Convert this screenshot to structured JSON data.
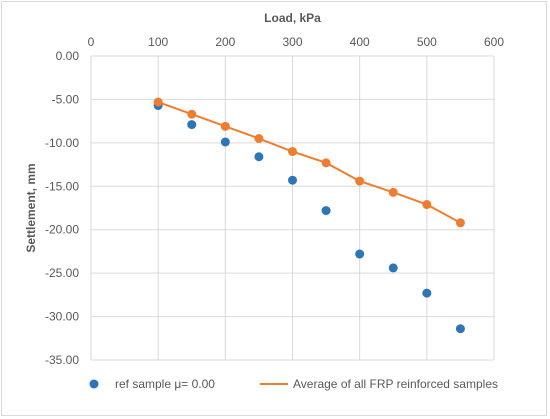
{
  "chart_data": {
    "type": "scatter",
    "xlabel": "Load, kPa",
    "ylabel": "Settlement, mm",
    "xlim": [
      0,
      600
    ],
    "ylim": [
      -35,
      0
    ],
    "x_ticks": [
      0,
      100,
      200,
      300,
      400,
      500,
      600
    ],
    "y_ticks": [
      0,
      -5,
      -10,
      -15,
      -20,
      -25,
      -30,
      -35
    ],
    "x_tick_labels": [
      "0",
      "100",
      "200",
      "300",
      "400",
      "500",
      "600"
    ],
    "y_tick_labels": [
      "0.00",
      "-5.00",
      "-10.00",
      "-15.00",
      "-20.00",
      "-25.00",
      "-30.00",
      "-35.00"
    ],
    "x_axis_position": "top",
    "grid": true,
    "legend_position": "bottom",
    "series": [
      {
        "name": "ref sample μ= 0.00",
        "style": "markers",
        "color": "#2e75b6",
        "x": [
          100,
          150,
          200,
          250,
          300,
          350,
          400,
          450,
          500,
          550
        ],
        "y": [
          -5.7,
          -7.9,
          -9.9,
          -11.6,
          -14.3,
          -17.8,
          -22.8,
          -24.4,
          -27.3,
          -31.4
        ]
      },
      {
        "name": "Average of all FRP reinforced samples",
        "style": "line+markers",
        "color": "#ed7d31",
        "x": [
          100,
          150,
          200,
          250,
          300,
          350,
          400,
          450,
          500,
          550
        ],
        "y": [
          -5.3,
          -6.7,
          -8.1,
          -9.5,
          -11.0,
          -12.3,
          -14.4,
          -15.7,
          -17.1,
          -19.2
        ]
      }
    ]
  }
}
